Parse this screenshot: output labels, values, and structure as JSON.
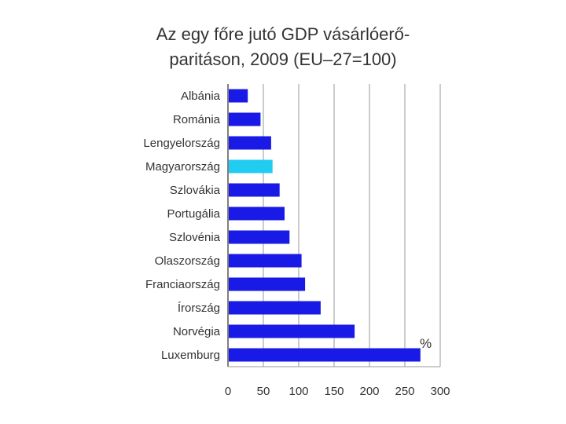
{
  "chart_data": {
    "type": "bar",
    "orientation": "horizontal",
    "title_lines": [
      "Az egy főre jutó GDP vásárlóerő-",
      "paritáson, 2009 (EU–27=100)"
    ],
    "unit_label": "%",
    "categories": [
      "Albánia",
      "Románia",
      "Lengyelország",
      "Magyarország",
      "Szlovákia",
      "Portugália",
      "Szlovénia",
      "Olaszország",
      "Franciaország",
      "Írország",
      "Norvégia",
      "Luxemburg"
    ],
    "values": [
      28,
      46,
      61,
      63,
      73,
      80,
      87,
      104,
      109,
      131,
      179,
      272
    ],
    "highlight_category": "Magyarország",
    "colors": {
      "bar": "#1a1ae6",
      "highlight": "#22ccf0",
      "grid": "#9a9a9a"
    },
    "xlim": [
      0,
      300
    ],
    "xticks": [
      0,
      50,
      100,
      150,
      200,
      250,
      300
    ],
    "grid": true
  }
}
